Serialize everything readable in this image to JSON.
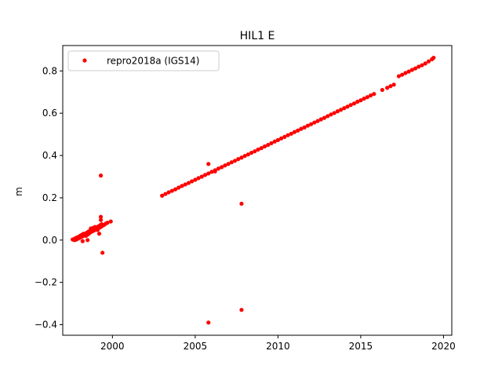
{
  "chart_data": {
    "type": "scatter",
    "title": "HIL1 E",
    "xlabel": "",
    "ylabel": "m",
    "xlim": [
      1997.0,
      2020.5
    ],
    "ylim": [
      -0.45,
      0.92
    ],
    "xticks": [
      2000,
      2005,
      2010,
      2015,
      2020
    ],
    "yticks": [
      -0.4,
      -0.2,
      0.0,
      0.2,
      0.4,
      0.6,
      0.8
    ],
    "grid": false,
    "legend_position": "top-left",
    "series": [
      {
        "name": "repro2018a (IGS14)",
        "color": "#ff0000",
        "marker": "dot",
        "points": [
          [
            1997.6,
            0.003
          ],
          [
            1997.7,
            0.0
          ],
          [
            1997.75,
            0.008
          ],
          [
            1997.8,
            0.002
          ],
          [
            1997.85,
            0.012
          ],
          [
            1997.9,
            0.006
          ],
          [
            1997.95,
            0.015
          ],
          [
            1998.0,
            0.01
          ],
          [
            1998.05,
            0.02
          ],
          [
            1998.1,
            0.014
          ],
          [
            1998.15,
            0.025
          ],
          [
            1998.2,
            0.018
          ],
          [
            1998.25,
            0.03
          ],
          [
            1998.3,
            0.022
          ],
          [
            1998.35,
            0.028
          ],
          [
            1998.4,
            0.02
          ],
          [
            1998.45,
            0.035
          ],
          [
            1998.5,
            0.026
          ],
          [
            1998.55,
            0.04
          ],
          [
            1998.6,
            0.032
          ],
          [
            1998.65,
            0.045
          ],
          [
            1998.7,
            0.038
          ],
          [
            1998.75,
            0.05
          ],
          [
            1998.8,
            0.042
          ],
          [
            1998.85,
            0.058
          ],
          [
            1998.9,
            0.046
          ],
          [
            1998.95,
            0.062
          ],
          [
            1999.0,
            0.05
          ],
          [
            1999.05,
            0.055
          ],
          [
            1999.1,
            0.048
          ],
          [
            1999.15,
            0.065
          ],
          [
            1999.2,
            0.058
          ],
          [
            1999.25,
            0.07
          ],
          [
            1999.3,
            0.062
          ],
          [
            1999.35,
            0.075
          ],
          [
            1999.4,
            0.068
          ],
          [
            1999.5,
            0.072
          ],
          [
            1999.6,
            0.078
          ],
          [
            1999.7,
            0.082
          ],
          [
            1999.9,
            0.088
          ],
          [
            1998.2,
            -0.005
          ],
          [
            1998.5,
            0.0
          ],
          [
            1998.7,
            0.055
          ],
          [
            1999.2,
            0.03
          ],
          [
            1999.3,
            0.095
          ],
          [
            1999.3,
            0.305
          ],
          [
            1999.3,
            0.11
          ],
          [
            1999.4,
            -0.06
          ],
          [
            2003.0,
            0.21
          ],
          [
            2003.2,
            0.218
          ],
          [
            2003.4,
            0.226
          ],
          [
            2003.6,
            0.233
          ],
          [
            2003.8,
            0.24
          ],
          [
            2004.0,
            0.248
          ],
          [
            2004.2,
            0.256
          ],
          [
            2004.4,
            0.263
          ],
          [
            2004.6,
            0.27
          ],
          [
            2004.8,
            0.278
          ],
          [
            2005.0,
            0.285
          ],
          [
            2005.2,
            0.293
          ],
          [
            2005.4,
            0.3
          ],
          [
            2005.6,
            0.308
          ],
          [
            2005.8,
            0.315
          ],
          [
            2006.0,
            0.323
          ],
          [
            2006.2,
            0.33
          ],
          [
            2006.4,
            0.338
          ],
          [
            2006.6,
            0.345
          ],
          [
            2006.8,
            0.353
          ],
          [
            2007.0,
            0.36
          ],
          [
            2007.2,
            0.368
          ],
          [
            2007.4,
            0.375
          ],
          [
            2007.6,
            0.383
          ],
          [
            2007.8,
            0.39
          ],
          [
            2008.0,
            0.398
          ],
          [
            2008.2,
            0.405
          ],
          [
            2008.4,
            0.413
          ],
          [
            2008.6,
            0.42
          ],
          [
            2008.8,
            0.428
          ],
          [
            2009.0,
            0.435
          ],
          [
            2009.2,
            0.443
          ],
          [
            2009.4,
            0.45
          ],
          [
            2009.6,
            0.458
          ],
          [
            2009.8,
            0.466
          ],
          [
            2010.0,
            0.473
          ],
          [
            2010.2,
            0.481
          ],
          [
            2010.4,
            0.488
          ],
          [
            2010.6,
            0.496
          ],
          [
            2010.8,
            0.503
          ],
          [
            2011.0,
            0.511
          ],
          [
            2011.2,
            0.518
          ],
          [
            2011.4,
            0.526
          ],
          [
            2011.6,
            0.533
          ],
          [
            2011.8,
            0.541
          ],
          [
            2012.0,
            0.548
          ],
          [
            2012.2,
            0.556
          ],
          [
            2012.4,
            0.563
          ],
          [
            2012.6,
            0.571
          ],
          [
            2012.8,
            0.578
          ],
          [
            2013.0,
            0.586
          ],
          [
            2013.2,
            0.594
          ],
          [
            2013.4,
            0.601
          ],
          [
            2013.6,
            0.609
          ],
          [
            2013.8,
            0.616
          ],
          [
            2014.0,
            0.624
          ],
          [
            2014.2,
            0.631
          ],
          [
            2014.4,
            0.639
          ],
          [
            2014.6,
            0.646
          ],
          [
            2014.8,
            0.654
          ],
          [
            2015.0,
            0.661
          ],
          [
            2015.2,
            0.669
          ],
          [
            2015.4,
            0.676
          ],
          [
            2015.6,
            0.684
          ],
          [
            2015.8,
            0.691
          ],
          [
            2016.3,
            0.71
          ],
          [
            2016.6,
            0.72
          ],
          [
            2016.8,
            0.728
          ],
          [
            2017.0,
            0.735
          ],
          [
            2017.3,
            0.775
          ],
          [
            2017.5,
            0.782
          ],
          [
            2017.7,
            0.79
          ],
          [
            2017.9,
            0.797
          ],
          [
            2018.1,
            0.805
          ],
          [
            2018.3,
            0.812
          ],
          [
            2018.5,
            0.82
          ],
          [
            2018.7,
            0.827
          ],
          [
            2018.9,
            0.835
          ],
          [
            2019.1,
            0.845
          ],
          [
            2019.3,
            0.855
          ],
          [
            2019.4,
            0.862
          ],
          [
            2005.8,
            0.36
          ],
          [
            2006.2,
            0.325
          ],
          [
            2005.8,
            -0.39
          ],
          [
            2007.8,
            -0.33
          ],
          [
            2007.8,
            0.172
          ]
        ]
      }
    ]
  }
}
